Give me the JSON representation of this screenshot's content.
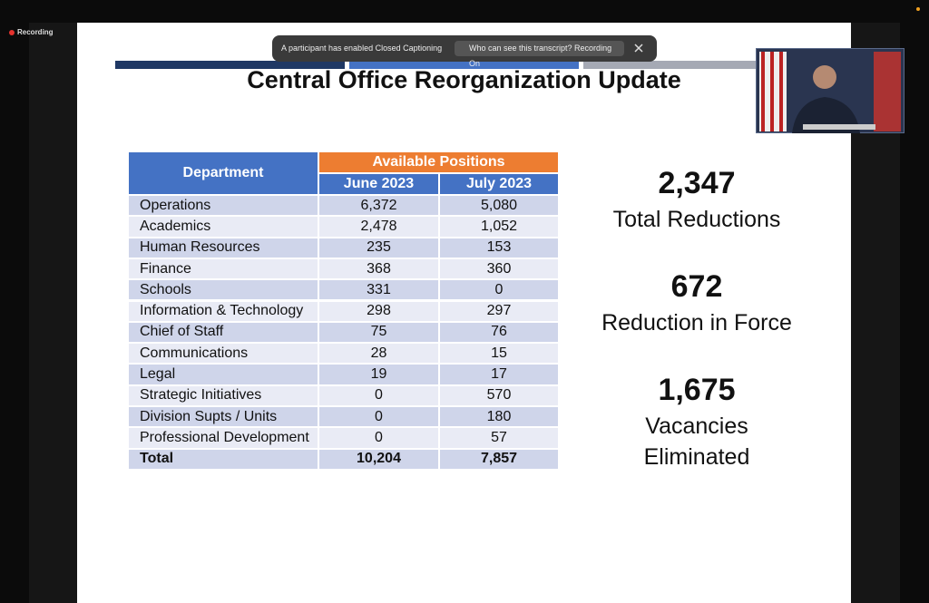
{
  "recording_label": "Recording",
  "caption_banner": {
    "message": "A participant has enabled Closed Captioning",
    "button": "Who can see this transcript? Recording On"
  },
  "slide": {
    "title": "Central Office Reorganization Update",
    "table": {
      "header": {
        "department": "Department",
        "group": "Available Positions",
        "columns": [
          "June 2023",
          "July 2023"
        ]
      },
      "rows": [
        [
          "Operations",
          "6,372",
          "5,080"
        ],
        [
          "Academics",
          "2,478",
          "1,052"
        ],
        [
          "Human Resources",
          "235",
          "153"
        ],
        [
          "Finance",
          "368",
          "360"
        ],
        [
          "Schools",
          "331",
          "0"
        ],
        [
          "Information & Technology",
          "298",
          "297"
        ],
        [
          "Chief of Staff",
          "75",
          "76"
        ],
        [
          "Communications",
          "28",
          "15"
        ],
        [
          "Legal",
          "19",
          "17"
        ],
        [
          "Strategic Initiatives",
          "0",
          "570"
        ],
        [
          "Division Supts / Units",
          "0",
          "180"
        ],
        [
          "Professional Development",
          "0",
          "57"
        ]
      ],
      "total": [
        "Total",
        "10,204",
        "7,857"
      ]
    },
    "stats": [
      {
        "value": "2,347",
        "label_lines": [
          "Total Reductions"
        ]
      },
      {
        "value": "672",
        "label_lines": [
          "Reduction in Force"
        ]
      },
      {
        "value": "1,675",
        "label_lines": [
          "Vacancies",
          "Eliminated"
        ]
      }
    ]
  }
}
